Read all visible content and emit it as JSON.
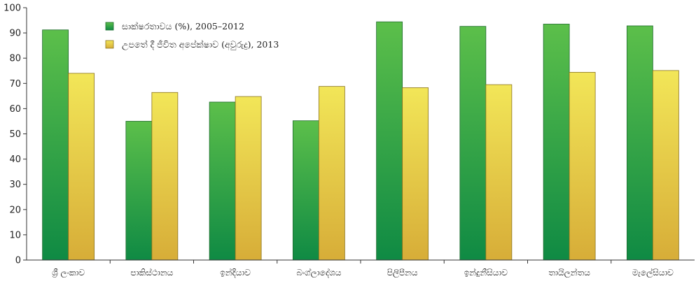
{
  "chart_data": {
    "type": "bar",
    "categories": [
      "ශ්‍රී ලංකාව",
      "පාකිස්ථානය",
      "ඉන්දියාව",
      "බංග්ලාදේශය",
      "පිලිපීනය",
      "ඉන්දුනීසියාව",
      "තායිලන්තය",
      "මැලේසියාව"
    ],
    "series": [
      {
        "name": "සාක්ෂරතාවය (%), 2005–2012",
        "color": "#2e9a45",
        "values": [
          91.2,
          55,
          62.6,
          55.2,
          94.4,
          92.6,
          93.5,
          92.8
        ]
      },
      {
        "name": "උපතේ දී ජීවිත අපේක්ෂාව (අවුරුදු), 2013",
        "color": "#e3c43a",
        "values": [
          74,
          66.4,
          64.8,
          68.8,
          68.3,
          69.5,
          74.4,
          75.1
        ]
      }
    ],
    "ylim": [
      0,
      100
    ],
    "yticks": [
      0,
      10,
      20,
      30,
      40,
      50,
      60,
      70,
      80,
      90,
      100
    ],
    "grid": false,
    "legend_position": "top-left"
  }
}
